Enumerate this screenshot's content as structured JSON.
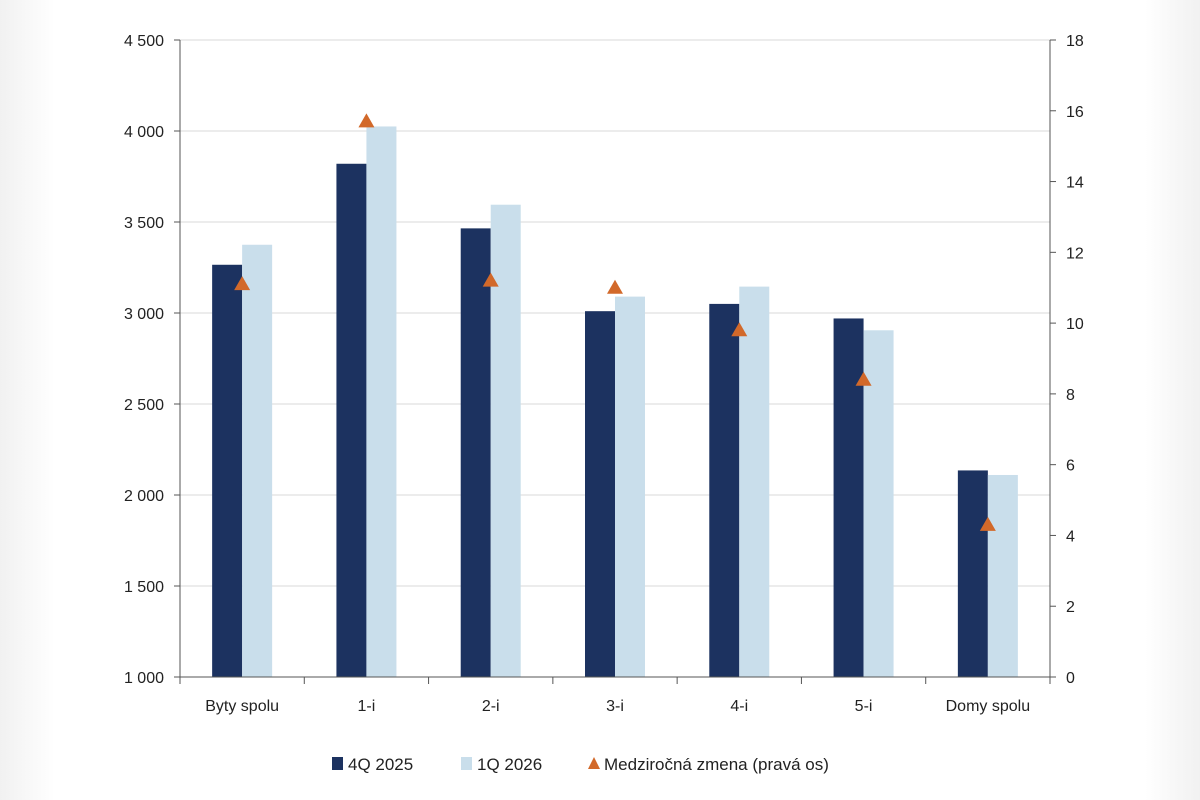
{
  "chart_data": {
    "type": "bar",
    "categories": [
      "Byty spolu",
      "1-i",
      "2-i",
      "3-i",
      "4-i",
      "5-i",
      "Domy spolu"
    ],
    "series": [
      {
        "name": "4Q 2025",
        "kind": "bar",
        "axis": "left",
        "color": "#1c3260",
        "values": [
          3265,
          3820,
          3465,
          3010,
          3050,
          2970,
          2135
        ]
      },
      {
        "name": "1Q 2026",
        "kind": "bar",
        "axis": "left",
        "color": "#c9deeb",
        "values": [
          3375,
          4025,
          3595,
          3090,
          3145,
          2905,
          2110
        ]
      },
      {
        "name": "Medziročná zmena (pravá os)",
        "kind": "marker",
        "marker": "triangle",
        "axis": "right",
        "color": "#d2692a",
        "values": [
          11.1,
          15.7,
          11.2,
          11.0,
          9.8,
          8.4,
          4.3
        ]
      }
    ],
    "y_left": {
      "min": 1000,
      "max": 4500,
      "step": 500,
      "tick_labels": [
        "1 000",
        "1 500",
        "2 000",
        "2 500",
        "3 000",
        "3 500",
        "4 000",
        "4 500"
      ]
    },
    "y_right": {
      "min": 0,
      "max": 18,
      "step": 2,
      "tick_labels": [
        "0",
        "2",
        "4",
        "6",
        "8",
        "10",
        "12",
        "14",
        "16",
        "18"
      ]
    },
    "grid": true,
    "legend_position": "bottom",
    "title": "",
    "xlabel": "",
    "ylabel": ""
  }
}
